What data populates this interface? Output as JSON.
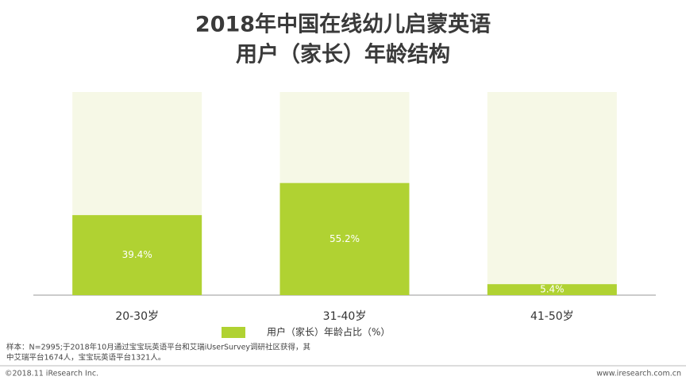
{
  "chart_data": {
    "type": "bar",
    "title": [
      "2018年中国在线幼儿启蒙英语",
      "用户（家长）年龄结构"
    ],
    "categories": [
      "20-30岁",
      "31-40岁",
      "41-50岁"
    ],
    "series": [
      {
        "name": "用户（家长）年龄占比（%）",
        "color": "#b0d232",
        "values": [
          39.4,
          55.2,
          5.4
        ],
        "value_labels": [
          "39.4%",
          "55.2%",
          "5.4%"
        ]
      }
    ],
    "ylim": [
      0,
      100
    ],
    "background_color": "#f6f8e6",
    "note": [
      "样本：N=2995;于2018年10月通过宝宝玩英语平台和艾瑞iUserSurvey调研社区获得，其",
      "中艾瑞平台1674人，宝宝玩英语平台1321人。"
    ],
    "source": "©2018.11 iResearch Inc.",
    "website": "www.iresearch.com.cn"
  }
}
